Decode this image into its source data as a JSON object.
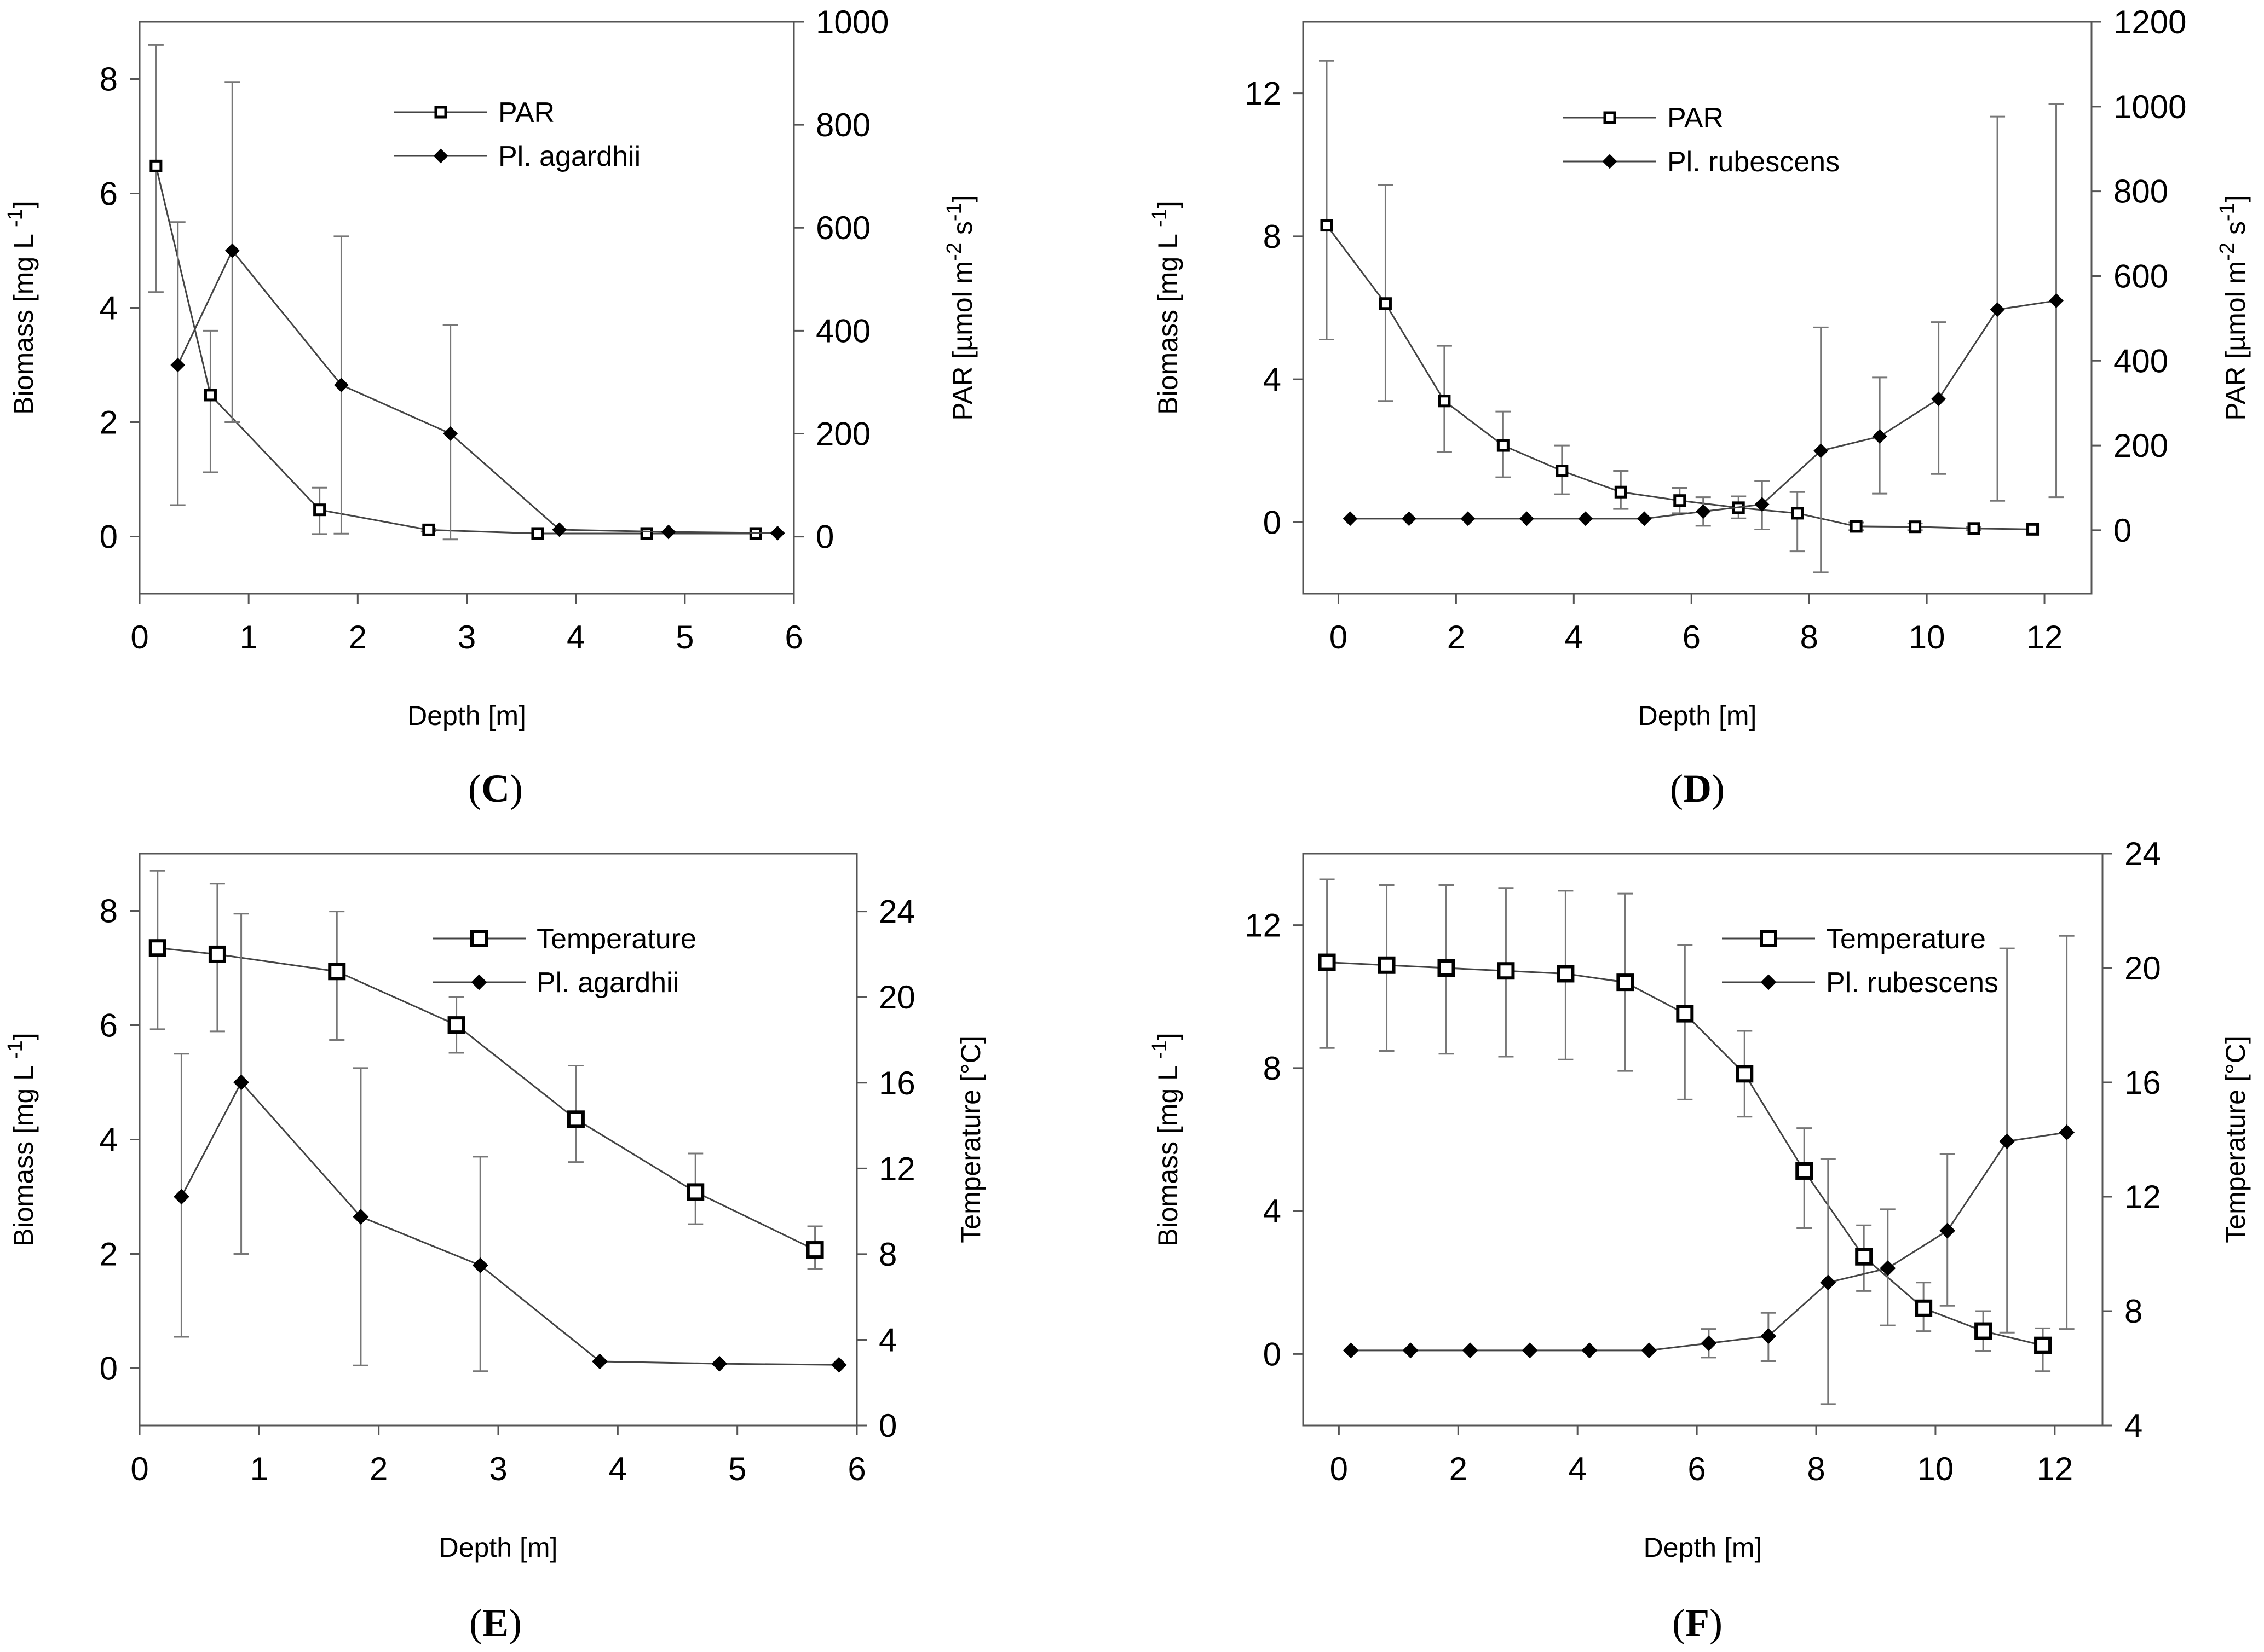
{
  "figure": {
    "panels": [
      "C",
      "D",
      "E",
      "F"
    ]
  },
  "chart_data": [
    {
      "id": "C",
      "type": "line",
      "panel_label": "C",
      "xlabel": "Depth [m]",
      "ylabel": "Biomass [mg L",
      "ylabel_sup": "-1",
      "ylabel_tail": "]",
      "y2label": "PAR [µmol m",
      "y2label_sup1": "-2",
      "y2label_mid": " s",
      "y2label_sup2": "-1",
      "y2label_tail": "]",
      "xlim": [
        0,
        6
      ],
      "xticks": [
        0,
        1,
        2,
        3,
        4,
        5,
        6
      ],
      "ylim": [
        -1,
        9
      ],
      "yticks": [
        0,
        2,
        4,
        6,
        8
      ],
      "y2lim": [
        -111,
        1000
      ],
      "y2ticks": [
        0,
        200,
        400,
        600,
        800,
        1000
      ],
      "series": [
        {
          "name": "PAR",
          "axis": "y2",
          "marker": "open-square",
          "x": [
            0.15,
            0.65,
            1.65,
            2.65,
            3.65,
            4.65,
            5.65
          ],
          "values": [
            720,
            275,
            52,
            13,
            6,
            6,
            6
          ],
          "err_low": [
            475,
            125,
            5,
            10,
            6,
            6,
            6
          ],
          "err_high": [
            955,
            400,
            95,
            16,
            6,
            6,
            6
          ]
        },
        {
          "name": "Pl. agardhii",
          "axis": "y",
          "marker": "filled-diamond",
          "x": [
            0.35,
            0.85,
            1.85,
            2.85,
            3.85,
            4.85,
            5.85
          ],
          "values": [
            3.0,
            5.0,
            2.65,
            1.8,
            0.12,
            0.08,
            0.06
          ],
          "err_low": [
            0.55,
            2.0,
            0.05,
            -0.05,
            0.12,
            0.08,
            0.06
          ],
          "err_high": [
            5.5,
            7.95,
            5.25,
            3.7,
            0.12,
            0.08,
            0.06
          ]
        }
      ]
    },
    {
      "id": "D",
      "type": "line",
      "panel_label": "D",
      "xlabel": "Depth [m]",
      "ylabel": "Biomass [mg L",
      "ylabel_sup": "-1",
      "ylabel_tail": "]",
      "y2label": "PAR [µmol m",
      "y2label_sup1": "-2",
      "y2label_mid": " s",
      "y2label_sup2": "-1",
      "y2label_tail": "]",
      "xlim": [
        -0.6,
        12.8
      ],
      "xticks": [
        0,
        2,
        4,
        6,
        8,
        10,
        12
      ],
      "ylim": [
        -2,
        14
      ],
      "yticks": [
        0,
        4,
        8,
        12
      ],
      "y2lim": [
        -150,
        1200
      ],
      "y2ticks": [
        0,
        200,
        400,
        600,
        800,
        1000,
        1200
      ],
      "series": [
        {
          "name": "PAR",
          "axis": "y2",
          "marker": "open-square",
          "x": [
            -0.2,
            0.8,
            1.8,
            2.8,
            3.8,
            4.8,
            5.8,
            6.8,
            7.8,
            8.8,
            9.8,
            10.8,
            11.8
          ],
          "values": [
            720,
            535,
            305,
            200,
            140,
            90,
            70,
            53,
            40,
            9,
            8,
            4,
            2
          ],
          "err_low": [
            450,
            305,
            185,
            125,
            85,
            50,
            40,
            28,
            -50,
            0,
            0,
            0,
            0
          ],
          "err_high": [
            1108,
            815,
            435,
            280,
            200,
            140,
            100,
            80,
            90,
            18,
            16,
            8,
            4
          ]
        },
        {
          "name": "Pl. rubescens",
          "axis": "y",
          "marker": "filled-diamond",
          "x": [
            0.2,
            1.2,
            2.2,
            3.2,
            4.2,
            5.2,
            6.2,
            7.2,
            8.2,
            9.2,
            10.2,
            11.2,
            12.2
          ],
          "values": [
            0.1,
            0.1,
            0.1,
            0.1,
            0.1,
            0.1,
            0.3,
            0.5,
            2.0,
            2.4,
            3.45,
            5.95,
            6.2
          ],
          "err_low": [
            0.1,
            0.1,
            0.1,
            0.1,
            0.1,
            0.1,
            -0.1,
            -0.2,
            -1.4,
            0.8,
            1.35,
            0.6,
            0.7
          ],
          "err_high": [
            0.1,
            0.1,
            0.1,
            0.1,
            0.1,
            0.1,
            0.7,
            1.15,
            5.45,
            4.05,
            5.6,
            11.35,
            11.7
          ]
        }
      ]
    },
    {
      "id": "E",
      "type": "line",
      "panel_label": "E",
      "xlabel": "Depth [m]",
      "ylabel": "Biomass [mg L",
      "ylabel_sup": "-1",
      "ylabel_tail": "]",
      "y2label": "Temperature [°C]",
      "xlim": [
        0,
        6
      ],
      "xticks": [
        0,
        1,
        2,
        3,
        4,
        5,
        6
      ],
      "ylim": [
        -1,
        9
      ],
      "yticks": [
        0,
        2,
        4,
        6,
        8
      ],
      "y2lim": [
        0,
        26.7
      ],
      "y2ticks": [
        0,
        4,
        8,
        12,
        16,
        20,
        24
      ],
      "series": [
        {
          "name": "Temperature",
          "axis": "y2",
          "marker": "open-square",
          "x": [
            0.15,
            0.65,
            1.65,
            2.65,
            3.65,
            4.65,
            5.65
          ],
          "values": [
            22.3,
            22.0,
            21.2,
            18.7,
            14.3,
            10.9,
            8.2
          ],
          "err_low": [
            18.5,
            18.4,
            18.0,
            17.4,
            12.3,
            9.4,
            7.3
          ],
          "err_high": [
            25.9,
            25.3,
            24.0,
            20.0,
            16.8,
            12.7,
            9.3
          ]
        },
        {
          "name": "Pl. agardhii",
          "axis": "y",
          "marker": "filled-diamond",
          "x": [
            0.35,
            0.85,
            1.85,
            2.85,
            3.85,
            4.85,
            5.85
          ],
          "values": [
            3.0,
            5.0,
            2.65,
            1.8,
            0.12,
            0.08,
            0.06
          ],
          "err_low": [
            0.55,
            2.0,
            0.05,
            -0.05,
            0.12,
            0.08,
            0.06
          ],
          "err_high": [
            5.5,
            7.95,
            5.25,
            3.7,
            0.12,
            0.08,
            0.06
          ]
        }
      ]
    },
    {
      "id": "F",
      "type": "line",
      "panel_label": "F",
      "xlabel": "Depth [m]",
      "ylabel": "Biomass [mg L",
      "ylabel_sup": "-1",
      "ylabel_tail": "]",
      "y2label": "Temperature [°C]",
      "xlim": [
        -0.6,
        12.8
      ],
      "xticks": [
        0,
        2,
        4,
        6,
        8,
        10,
        12
      ],
      "ylim": [
        -2,
        14
      ],
      "yticks": [
        0,
        4,
        8,
        12
      ],
      "y2lim": [
        4,
        24
      ],
      "y2ticks": [
        4,
        8,
        12,
        16,
        20,
        24
      ],
      "series": [
        {
          "name": "Temperature",
          "axis": "y2",
          "marker": "open-square",
          "x": [
            -0.2,
            0.8,
            1.8,
            2.8,
            3.8,
            4.8,
            5.8,
            6.8,
            7.8,
            8.8,
            9.8,
            10.8,
            11.8
          ],
          "values": [
            20.2,
            20.1,
            20.0,
            19.9,
            19.8,
            19.5,
            18.4,
            16.3,
            12.9,
            9.9,
            8.1,
            7.3,
            6.8
          ],
          "err_low": [
            17.2,
            17.1,
            17.0,
            16.9,
            16.8,
            16.4,
            15.4,
            14.8,
            10.9,
            8.7,
            7.3,
            6.6,
            5.9
          ],
          "err_high": [
            23.1,
            22.9,
            22.9,
            22.8,
            22.7,
            22.6,
            20.8,
            17.8,
            14.4,
            11.0,
            9.0,
            8.0,
            7.4
          ]
        },
        {
          "name": "Pl. rubescens",
          "axis": "y",
          "marker": "filled-diamond",
          "x": [
            0.2,
            1.2,
            2.2,
            3.2,
            4.2,
            5.2,
            6.2,
            7.2,
            8.2,
            9.2,
            10.2,
            11.2,
            12.2
          ],
          "values": [
            0.1,
            0.1,
            0.1,
            0.1,
            0.1,
            0.1,
            0.3,
            0.5,
            2.0,
            2.4,
            3.45,
            5.95,
            6.2
          ],
          "err_low": [
            0.1,
            0.1,
            0.1,
            0.1,
            0.1,
            0.1,
            -0.1,
            -0.2,
            -1.4,
            0.8,
            1.35,
            0.6,
            0.7
          ],
          "err_high": [
            0.1,
            0.1,
            0.1,
            0.1,
            0.1,
            0.1,
            0.7,
            1.15,
            5.45,
            4.05,
            5.6,
            11.35,
            11.7
          ]
        }
      ]
    }
  ]
}
